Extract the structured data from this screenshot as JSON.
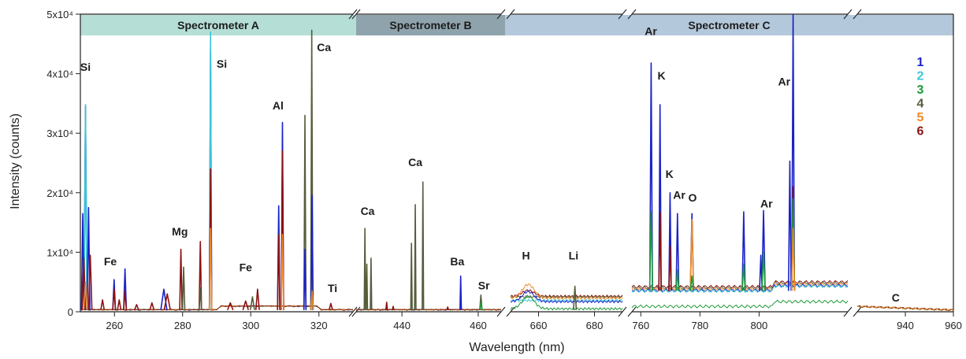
{
  "chart_data": {
    "type": "line",
    "xlabel": "Wavelength (nm)",
    "ylabel": "Intensity (counts)",
    "ylim": [
      0,
      50000
    ],
    "y_ticks": [
      {
        "value": 0,
        "label": "0"
      },
      {
        "value": 10000,
        "label": "1x10⁴"
      },
      {
        "value": 20000,
        "label": "2x10⁴"
      },
      {
        "value": 30000,
        "label": "3x10⁴"
      },
      {
        "value": 40000,
        "label": "4x10⁴"
      },
      {
        "value": 50000,
        "label": "5x10⁴"
      }
    ],
    "segments": [
      {
        "id": "A",
        "xlim": [
          250,
          330
        ],
        "ticks": [
          "260",
          "280",
          "300",
          "320"
        ]
      },
      {
        "id": "B",
        "xlim": [
          428,
          466
        ],
        "ticks": [
          "440",
          "460"
        ]
      },
      {
        "id": "H",
        "xlim": [
          650,
          690
        ],
        "ticks": [
          "660",
          "680"
        ]
      },
      {
        "id": "C",
        "xlim": [
          757,
          830
        ],
        "ticks": [
          "760",
          "780",
          "800"
        ]
      },
      {
        "id": "D",
        "xlim": [
          920,
          960
        ],
        "ticks": [
          "940",
          "960"
        ]
      }
    ],
    "spectrometers": [
      {
        "label": "Spectrometer A",
        "color": "#b5dfd6"
      },
      {
        "label": "Spectrometer B",
        "color": "#8fa3ad"
      },
      {
        "label": "Spectrometer C",
        "color": "#b4c8db"
      }
    ],
    "legend_position": "top-right",
    "series": [
      {
        "name": "1",
        "color": "#1a22c8"
      },
      {
        "name": "2",
        "color": "#39c6d8"
      },
      {
        "name": "3",
        "color": "#1f9a3a"
      },
      {
        "name": "4",
        "color": "#565d3c"
      },
      {
        "name": "5",
        "color": "#f08a24"
      },
      {
        "name": "6",
        "color": "#8c1212"
      }
    ],
    "peaks": [
      {
        "seg": "A",
        "x": 251.5,
        "height": 34500,
        "color": "#1a22c8",
        "width": 0.45
      },
      {
        "seg": "A",
        "x": 251.5,
        "height": 34800,
        "color": "#39c6d8",
        "width": 0.4
      },
      {
        "seg": "A",
        "x": 250.7,
        "height": 16500,
        "color": "#1a22c8",
        "width": 0.4
      },
      {
        "seg": "A",
        "x": 252.4,
        "height": 17500,
        "color": "#1a22c8",
        "width": 0.4
      },
      {
        "seg": "A",
        "x": 251.0,
        "height": 9000,
        "color": "#8c1212",
        "width": 0.5
      },
      {
        "seg": "A",
        "x": 252.9,
        "height": 9500,
        "color": "#8c1212",
        "width": 0.5
      },
      {
        "seg": "A",
        "x": 251.5,
        "height": 5000,
        "color": "#f08a24",
        "width": 0.5
      },
      {
        "seg": "A",
        "x": 256.5,
        "height": 2000,
        "color": "#8c1212",
        "width": 0.5
      },
      {
        "seg": "A",
        "x": 259.9,
        "height": 5400,
        "color": "#1a22c8",
        "width": 0.4
      },
      {
        "seg": "A",
        "x": 259.9,
        "height": 3800,
        "color": "#8c1212",
        "width": 0.4
      },
      {
        "seg": "A",
        "x": 261.4,
        "height": 2000,
        "color": "#8c1212",
        "width": 0.5
      },
      {
        "seg": "A",
        "x": 263.1,
        "height": 7200,
        "color": "#1a22c8",
        "width": 0.4
      },
      {
        "seg": "A",
        "x": 263.1,
        "height": 3500,
        "color": "#8c1212",
        "width": 0.4
      },
      {
        "seg": "A",
        "x": 266.5,
        "height": 1200,
        "color": "#8c1212",
        "width": 0.6
      },
      {
        "seg": "A",
        "x": 271.0,
        "height": 1500,
        "color": "#8c1212",
        "width": 0.6
      },
      {
        "seg": "A",
        "x": 274.5,
        "height": 3800,
        "color": "#1a22c8",
        "width": 0.9
      },
      {
        "seg": "A",
        "x": 275.5,
        "height": 3000,
        "color": "#8c1212",
        "width": 0.9
      },
      {
        "seg": "A",
        "x": 279.5,
        "height": 10500,
        "color": "#8c1212",
        "width": 0.35
      },
      {
        "seg": "A",
        "x": 280.3,
        "height": 7500,
        "color": "#565d3c",
        "width": 0.35
      },
      {
        "seg": "A",
        "x": 285.2,
        "height": 11800,
        "color": "#8c1212",
        "width": 0.35
      },
      {
        "seg": "A",
        "x": 285.2,
        "height": 4000,
        "color": "#565d3c",
        "width": 0.35
      },
      {
        "seg": "A",
        "x": 288.2,
        "height": 44000,
        "color": "#1a22c8",
        "width": 0.35
      },
      {
        "seg": "A",
        "x": 288.2,
        "height": 47000,
        "color": "#39c6d8",
        "width": 0.3
      },
      {
        "seg": "A",
        "x": 288.2,
        "height": 24000,
        "color": "#8c1212",
        "width": 0.35
      },
      {
        "seg": "A",
        "x": 288.2,
        "height": 14000,
        "color": "#f08a24",
        "width": 0.35
      },
      {
        "seg": "A",
        "x": 294.0,
        "height": 1500,
        "color": "#8c1212",
        "width": 0.8
      },
      {
        "seg": "A",
        "x": 298.5,
        "height": 1800,
        "color": "#8c1212",
        "width": 0.8
      },
      {
        "seg": "A",
        "x": 300.5,
        "height": 2500,
        "color": "#565d3c",
        "width": 0.6
      },
      {
        "seg": "A",
        "x": 302.0,
        "height": 3800,
        "color": "#8c1212",
        "width": 0.5
      },
      {
        "seg": "A",
        "x": 308.2,
        "height": 17800,
        "color": "#1a22c8",
        "width": 0.35
      },
      {
        "seg": "A",
        "x": 308.2,
        "height": 13000,
        "color": "#8c1212",
        "width": 0.35
      },
      {
        "seg": "A",
        "x": 309.3,
        "height": 31800,
        "color": "#1a22c8",
        "width": 0.35
      },
      {
        "seg": "A",
        "x": 309.3,
        "height": 27000,
        "color": "#8c1212",
        "width": 0.35
      },
      {
        "seg": "A",
        "x": 309.3,
        "height": 13000,
        "color": "#f08a24",
        "width": 0.35
      },
      {
        "seg": "A",
        "x": 315.9,
        "height": 33000,
        "color": "#565d3c",
        "width": 0.3
      },
      {
        "seg": "A",
        "x": 315.9,
        "height": 10500,
        "color": "#1a22c8",
        "width": 0.3
      },
      {
        "seg": "A",
        "x": 317.9,
        "height": 47300,
        "color": "#565d3c",
        "width": 0.3
      },
      {
        "seg": "A",
        "x": 318.0,
        "height": 19500,
        "color": "#1a22c8",
        "width": 0.3
      },
      {
        "seg": "A",
        "x": 318.0,
        "height": 3500,
        "color": "#f08a24",
        "width": 0.35
      },
      {
        "seg": "A",
        "x": 323.5,
        "height": 1400,
        "color": "#8c1212",
        "width": 0.5
      },
      {
        "seg": "B",
        "x": 430.3,
        "height": 14000,
        "color": "#565d3c",
        "width": 0.18
      },
      {
        "seg": "B",
        "x": 430.8,
        "height": 8000,
        "color": "#565d3c",
        "width": 0.18
      },
      {
        "seg": "B",
        "x": 431.9,
        "height": 9000,
        "color": "#565d3c",
        "width": 0.18
      },
      {
        "seg": "B",
        "x": 436.0,
        "height": 1600,
        "color": "#8c1212",
        "width": 0.2
      },
      {
        "seg": "B",
        "x": 437.7,
        "height": 900,
        "color": "#8c1212",
        "width": 0.2
      },
      {
        "seg": "B",
        "x": 442.5,
        "height": 11500,
        "color": "#565d3c",
        "width": 0.18
      },
      {
        "seg": "B",
        "x": 443.5,
        "height": 18000,
        "color": "#565d3c",
        "width": 0.18
      },
      {
        "seg": "B",
        "x": 445.5,
        "height": 21800,
        "color": "#565d3c",
        "width": 0.18
      },
      {
        "seg": "B",
        "x": 452.0,
        "height": 800,
        "color": "#8c1212",
        "width": 0.2
      },
      {
        "seg": "B",
        "x": 455.4,
        "height": 6000,
        "color": "#1a22c8",
        "width": 0.18
      },
      {
        "seg": "B",
        "x": 460.7,
        "height": 2800,
        "color": "#565d3c",
        "width": 0.3
      },
      {
        "seg": "B",
        "x": 460.7,
        "height": 1500,
        "color": "#1f9a3a",
        "width": 0.3
      },
      {
        "seg": "H",
        "x": 673.0,
        "height": 4300,
        "color": "#565d3c",
        "width": 0.5
      },
      {
        "seg": "C",
        "x": 763.5,
        "height": 41800,
        "color": "#1a22c8",
        "width": 0.45
      },
      {
        "seg": "C",
        "x": 763.5,
        "height": 16800,
        "color": "#1f9a3a",
        "width": 0.5
      },
      {
        "seg": "C",
        "x": 766.5,
        "height": 34800,
        "color": "#1a22c8",
        "width": 0.4
      },
      {
        "seg": "C",
        "x": 766.5,
        "height": 16800,
        "color": "#8c1212",
        "width": 0.4
      },
      {
        "seg": "C",
        "x": 769.9,
        "height": 20000,
        "color": "#1a22c8",
        "width": 0.4
      },
      {
        "seg": "C",
        "x": 769.9,
        "height": 11000,
        "color": "#8c1212",
        "width": 0.4
      },
      {
        "seg": "C",
        "x": 772.4,
        "height": 16500,
        "color": "#1a22c8",
        "width": 0.45
      },
      {
        "seg": "C",
        "x": 772.4,
        "height": 7000,
        "color": "#1f9a3a",
        "width": 0.45
      },
      {
        "seg": "C",
        "x": 777.3,
        "height": 16500,
        "color": "#1a22c8",
        "width": 0.55
      },
      {
        "seg": "C",
        "x": 777.3,
        "height": 15500,
        "color": "#f08a24",
        "width": 0.55
      },
      {
        "seg": "C",
        "x": 777.3,
        "height": 6000,
        "color": "#1f9a3a",
        "width": 0.55
      },
      {
        "seg": "C",
        "x": 794.8,
        "height": 16800,
        "color": "#1a22c8",
        "width": 0.5
      },
      {
        "seg": "C",
        "x": 794.8,
        "height": 8000,
        "color": "#1f9a3a",
        "width": 0.5
      },
      {
        "seg": "C",
        "x": 801.5,
        "height": 17000,
        "color": "#1a22c8",
        "width": 0.55
      },
      {
        "seg": "C",
        "x": 800.6,
        "height": 9500,
        "color": "#1a22c8",
        "width": 0.45
      },
      {
        "seg": "C",
        "x": 801.5,
        "height": 10000,
        "color": "#1f9a3a",
        "width": 0.55
      },
      {
        "seg": "C",
        "x": 810.4,
        "height": 25300,
        "color": "#1a22c8",
        "width": 0.45
      },
      {
        "seg": "C",
        "x": 811.5,
        "height": 50000,
        "color": "#1a22c8",
        "width": 0.45
      },
      {
        "seg": "C",
        "x": 811.5,
        "height": 21000,
        "color": "#8c1212",
        "width": 0.5
      },
      {
        "seg": "C",
        "x": 811.5,
        "height": 19000,
        "color": "#1f9a3a",
        "width": 0.5
      },
      {
        "seg": "C",
        "x": 811.5,
        "height": 14000,
        "color": "#f08a24",
        "width": 0.5
      }
    ],
    "bumps": [
      {
        "seg": "H",
        "x": 656.3,
        "height": 4300,
        "color": "#f08a24",
        "width": 3.0,
        "base": 2000
      },
      {
        "seg": "H",
        "x": 656.3,
        "height": 3500,
        "color": "#1a22c8",
        "width": 3.0,
        "base": 1800
      },
      {
        "seg": "H",
        "x": 656.3,
        "height": 3200,
        "color": "#8c1212",
        "width": 3.0,
        "base": 2200
      },
      {
        "seg": "H",
        "x": 656.3,
        "height": 2500,
        "color": "#1f9a3a",
        "width": 3.0,
        "base": 400
      }
    ],
    "annotations": [
      {
        "seg": "A",
        "x": 251.5,
        "y": 40500,
        "text": "Si"
      },
      {
        "seg": "A",
        "x": 258.8,
        "y": 7800,
        "text": "Fe"
      },
      {
        "seg": "A",
        "x": 279.2,
        "y": 12800,
        "text": "Mg"
      },
      {
        "seg": "A",
        "x": 291.5,
        "y": 41000,
        "text": "Si"
      },
      {
        "seg": "A",
        "x": 298.5,
        "y": 6800,
        "text": "Fe"
      },
      {
        "seg": "A",
        "x": 308.0,
        "y": 34000,
        "text": "Al"
      },
      {
        "seg": "A",
        "x": 321.5,
        "y": 43800,
        "text": "Ca"
      },
      {
        "seg": "A",
        "x": 324.0,
        "y": 3300,
        "text": "Ti"
      },
      {
        "seg": "B",
        "x": 431.0,
        "y": 16300,
        "text": "Ca"
      },
      {
        "seg": "B",
        "x": 443.5,
        "y": 24500,
        "text": "Ca"
      },
      {
        "seg": "B",
        "x": 454.5,
        "y": 7800,
        "text": "Ba"
      },
      {
        "seg": "B",
        "x": 461.5,
        "y": 3800,
        "text": "Sr"
      },
      {
        "seg": "H",
        "x": 655.5,
        "y": 8800,
        "text": "H"
      },
      {
        "seg": "H",
        "x": 672.5,
        "y": 8800,
        "text": "Li"
      },
      {
        "seg": "C",
        "x": 763.4,
        "y": 46500,
        "text": "Ar"
      },
      {
        "seg": "C",
        "x": 767.0,
        "y": 39000,
        "text": "K"
      },
      {
        "seg": "C",
        "x": 769.7,
        "y": 22500,
        "text": "K"
      },
      {
        "seg": "C",
        "x": 773.0,
        "y": 19000,
        "text": "Ar"
      },
      {
        "seg": "C",
        "x": 777.5,
        "y": 18500,
        "text": "O"
      },
      {
        "seg": "C",
        "x": 802.5,
        "y": 17500,
        "text": "Ar"
      },
      {
        "seg": "C",
        "x": 808.5,
        "y": 38000,
        "text": "Ar"
      },
      {
        "seg": "D",
        "x": 936.0,
        "y": 1700,
        "text": "C"
      }
    ]
  }
}
